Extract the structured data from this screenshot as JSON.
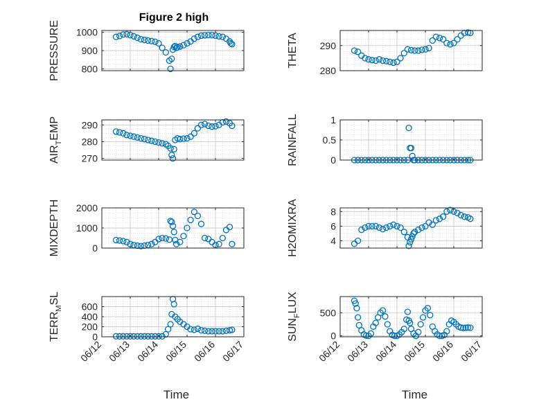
{
  "figure": {
    "title": "Figure 2 high"
  },
  "colors": {
    "marker": "#0072BD",
    "axis": "#262626",
    "grid": "#d0d0d0",
    "background": "#ffffff"
  },
  "chart_data": [
    {
      "type": "scatter",
      "ylabel": "PRESSURE",
      "xlabel": "",
      "title": "Figure 2 high",
      "xlim": [
        "06/12 00:00",
        "06/17 00:00"
      ],
      "ylim": [
        790,
        1010
      ],
      "yticks": [
        800,
        900,
        1000
      ],
      "xticks": [
        "06/12",
        "06/13",
        "06/14",
        "06/15",
        "06/16",
        "06/17"
      ],
      "show_xticklabels": false,
      "grid": true,
      "series": [
        {
          "x": [
            "06/12 12:00",
            "06/12 15:00",
            "06/12 18:00",
            "06/12 21:00",
            "06/13 00:00",
            "06/13 03:00",
            "06/13 06:00",
            "06/13 09:00",
            "06/13 12:00",
            "06/13 15:00",
            "06/13 18:00",
            "06/13 21:00",
            "06/14 00:00",
            "06/14 03:00",
            "06/14 06:00",
            "06/14 09:00",
            "06/14 10:00",
            "06/14 11:00",
            "06/14 12:00",
            "06/14 13:00",
            "06/14 14:00",
            "06/14 15:00",
            "06/14 16:00",
            "06/14 18:00",
            "06/14 21:00",
            "06/15 00:00",
            "06/15 03:00",
            "06/15 06:00",
            "06/15 09:00",
            "06/15 12:00",
            "06/15 15:00",
            "06/15 18:00",
            "06/15 21:00",
            "06/16 00:00",
            "06/16 03:00",
            "06/16 06:00",
            "06/16 09:00",
            "06/16 12:00",
            "06/16 13:00",
            "06/16 14:00"
          ],
          "y": [
            975,
            980,
            988,
            990,
            985,
            978,
            970,
            962,
            958,
            955,
            952,
            948,
            940,
            915,
            890,
            845,
            800,
            855,
            905,
            920,
            925,
            915,
            918,
            922,
            930,
            940,
            950,
            965,
            975,
            982,
            984,
            985,
            985,
            982,
            978,
            975,
            965,
            950,
            940,
            935
          ]
        }
      ]
    },
    {
      "type": "scatter",
      "ylabel": "THETA",
      "xlabel": "",
      "xlim": [
        "06/12 00:00",
        "06/17 00:00"
      ],
      "ylim": [
        280,
        296
      ],
      "yticks": [
        280,
        290
      ],
      "xticks": [
        "06/12",
        "06/13",
        "06/14",
        "06/15",
        "06/16",
        "06/17"
      ],
      "show_xticklabels": false,
      "grid": true,
      "series": [
        {
          "x": [
            "06/12 12:00",
            "06/12 15:00",
            "06/12 18:00",
            "06/12 21:00",
            "06/13 00:00",
            "06/13 03:00",
            "06/13 06:00",
            "06/13 09:00",
            "06/13 12:00",
            "06/13 15:00",
            "06/13 18:00",
            "06/13 21:00",
            "06/14 00:00",
            "06/14 03:00",
            "06/14 06:00",
            "06/14 09:00",
            "06/14 12:00",
            "06/14 15:00",
            "06/14 18:00",
            "06/14 21:00",
            "06/15 00:00",
            "06/15 03:00",
            "06/15 06:00",
            "06/15 09:00",
            "06/15 12:00",
            "06/15 15:00",
            "06/15 18:00",
            "06/15 21:00",
            "06/16 00:00",
            "06/16 03:00",
            "06/16 06:00",
            "06/16 09:00",
            "06/16 12:00",
            "06/16 14:00"
          ],
          "y": [
            288,
            287.5,
            286,
            285,
            284.5,
            284.2,
            284,
            284.5,
            284,
            283.8,
            283.5,
            283.2,
            283.5,
            285,
            287,
            288.5,
            288.2,
            288,
            288,
            288.3,
            288.5,
            289,
            292,
            293.5,
            293,
            292.5,
            291,
            290.5,
            291,
            292.5,
            294,
            295,
            295.2,
            295
          ]
        }
      ]
    },
    {
      "type": "scatter",
      "ylabel": "AIR_TEMP",
      "ylabel_main": "AIR",
      "ylabel_sub": "T",
      "ylabel_rest": "EMP",
      "xlabel": "",
      "xlim": [
        "06/12 00:00",
        "06/17 00:00"
      ],
      "ylim": [
        269,
        293
      ],
      "yticks": [
        270,
        280,
        290
      ],
      "xticks": [
        "06/12",
        "06/13",
        "06/14",
        "06/15",
        "06/16",
        "06/17"
      ],
      "show_xticklabels": false,
      "grid": true,
      "series": [
        {
          "x": [
            "06/12 12:00",
            "06/12 15:00",
            "06/12 18:00",
            "06/12 21:00",
            "06/13 00:00",
            "06/13 03:00",
            "06/13 06:00",
            "06/13 09:00",
            "06/13 12:00",
            "06/13 15:00",
            "06/13 18:00",
            "06/13 21:00",
            "06/14 00:00",
            "06/14 03:00",
            "06/14 06:00",
            "06/14 08:00",
            "06/14 10:00",
            "06/14 11:00",
            "06/14 12:00",
            "06/14 13:00",
            "06/14 14:00",
            "06/14 16:00",
            "06/14 18:00",
            "06/14 21:00",
            "06/15 00:00",
            "06/15 03:00",
            "06/15 06:00",
            "06/15 09:00",
            "06/15 12:00",
            "06/15 15:00",
            "06/15 18:00",
            "06/15 21:00",
            "06/16 00:00",
            "06/16 03:00",
            "06/16 06:00",
            "06/16 09:00",
            "06/16 12:00",
            "06/16 14:00"
          ],
          "y": [
            286,
            285.5,
            285,
            284,
            283.5,
            283,
            282.5,
            282,
            281.5,
            281,
            280.5,
            280,
            279.5,
            279,
            278.5,
            277.5,
            276,
            272,
            270,
            275.5,
            281,
            282,
            281.5,
            281.8,
            282,
            283,
            285,
            288,
            290,
            290.5,
            289.5,
            289,
            289.2,
            290,
            291.5,
            292,
            291,
            289.5
          ]
        }
      ]
    },
    {
      "type": "scatter",
      "ylabel": "RAINFALL",
      "xlabel": "",
      "xlim": [
        "06/12 00:00",
        "06/17 00:00"
      ],
      "ylim": [
        0,
        1
      ],
      "yticks": [
        0,
        0.5,
        1
      ],
      "xticks": [
        "06/12",
        "06/13",
        "06/14",
        "06/15",
        "06/16",
        "06/17"
      ],
      "show_xticklabels": false,
      "grid": true,
      "series": [
        {
          "x": [
            "06/12 12:00",
            "06/12 15:00",
            "06/12 18:00",
            "06/12 21:00",
            "06/13 00:00",
            "06/13 03:00",
            "06/13 06:00",
            "06/13 09:00",
            "06/13 12:00",
            "06/13 15:00",
            "06/13 18:00",
            "06/13 21:00",
            "06/14 00:00",
            "06/14 03:00",
            "06/14 06:00",
            "06/14 09:00",
            "06/14 10:00",
            "06/14 11:00",
            "06/14 12:00",
            "06/14 13:00",
            "06/14 14:00",
            "06/14 15:00",
            "06/14 18:00",
            "06/14 21:00",
            "06/15 00:00",
            "06/15 03:00",
            "06/15 06:00",
            "06/15 09:00",
            "06/15 12:00",
            "06/15 15:00",
            "06/15 18:00",
            "06/15 21:00",
            "06/16 00:00",
            "06/16 03:00",
            "06/16 06:00",
            "06/16 09:00",
            "06/16 12:00",
            "06/16 14:00"
          ],
          "y": [
            0,
            0,
            0,
            0,
            0,
            0,
            0,
            0,
            0,
            0,
            0,
            0,
            0,
            0,
            0,
            0,
            0.8,
            0.3,
            0.3,
            0.1,
            0,
            0,
            0,
            0,
            0,
            0,
            0,
            0,
            0,
            0,
            0,
            0,
            0,
            0,
            0,
            0,
            0,
            0
          ]
        }
      ]
    },
    {
      "type": "scatter",
      "ylabel": "MIXDEPTH",
      "xlabel": "",
      "xlim": [
        "06/12 00:00",
        "06/17 00:00"
      ],
      "ylim": [
        0,
        2000
      ],
      "yticks": [
        0,
        1000,
        2000
      ],
      "xticks": [
        "06/12",
        "06/13",
        "06/14",
        "06/15",
        "06/16",
        "06/17"
      ],
      "show_xticklabels": false,
      "grid": true,
      "series": [
        {
          "x": [
            "06/12 12:00",
            "06/12 15:00",
            "06/12 18:00",
            "06/12 21:00",
            "06/13 00:00",
            "06/13 03:00",
            "06/13 06:00",
            "06/13 09:00",
            "06/13 12:00",
            "06/13 15:00",
            "06/13 18:00",
            "06/13 21:00",
            "06/14 00:00",
            "06/14 03:00",
            "06/14 06:00",
            "06/14 09:00",
            "06/14 10:00",
            "06/14 11:00",
            "06/14 12:00",
            "06/14 13:00",
            "06/14 14:00",
            "06/14 15:00",
            "06/14 18:00",
            "06/14 21:00",
            "06/15 00:00",
            "06/15 03:00",
            "06/15 06:00",
            "06/15 09:00",
            "06/15 12:00",
            "06/15 15:00",
            "06/15 18:00",
            "06/15 21:00",
            "06/16 00:00",
            "06/16 03:00",
            "06/16 06:00",
            "06/16 09:00",
            "06/16 12:00",
            "06/16 14:00"
          ],
          "y": [
            400,
            380,
            350,
            300,
            200,
            150,
            120,
            100,
            120,
            150,
            200,
            300,
            450,
            500,
            480,
            420,
            1350,
            1300,
            1100,
            800,
            400,
            200,
            300,
            600,
            1000,
            1400,
            1800,
            1600,
            1200,
            500,
            450,
            300,
            150,
            200,
            500,
            900,
            1050,
            200
          ]
        }
      ]
    },
    {
      "type": "scatter",
      "ylabel": "H2OMIXRA",
      "xlabel": "",
      "xlim": [
        "06/12 00:00",
        "06/17 00:00"
      ],
      "ylim": [
        3,
        8.5
      ],
      "yticks": [
        4,
        6,
        8
      ],
      "xticks": [
        "06/12",
        "06/13",
        "06/14",
        "06/15",
        "06/16",
        "06/17"
      ],
      "show_xticklabels": false,
      "grid": true,
      "series": [
        {
          "x": [
            "06/12 12:00",
            "06/12 15:00",
            "06/12 18:00",
            "06/12 21:00",
            "06/13 00:00",
            "06/13 03:00",
            "06/13 06:00",
            "06/13 09:00",
            "06/13 12:00",
            "06/13 15:00",
            "06/13 18:00",
            "06/13 21:00",
            "06/14 00:00",
            "06/14 03:00",
            "06/14 06:00",
            "06/14 09:00",
            "06/14 10:00",
            "06/14 11:00",
            "06/14 12:00",
            "06/14 13:00",
            "06/14 14:00",
            "06/14 15:00",
            "06/14 18:00",
            "06/14 21:00",
            "06/15 00:00",
            "06/15 03:00",
            "06/15 06:00",
            "06/15 09:00",
            "06/15 12:00",
            "06/15 15:00",
            "06/15 18:00",
            "06/15 21:00",
            "06/16 00:00",
            "06/16 03:00",
            "06/16 06:00",
            "06/16 09:00",
            "06/16 12:00",
            "06/16 14:00"
          ],
          "y": [
            3.6,
            4,
            5.5,
            5.8,
            6,
            6,
            6,
            5.8,
            5.6,
            5.8,
            6,
            6.2,
            6,
            5.8,
            5.2,
            4.5,
            3.3,
            3.8,
            4.2,
            4.6,
            5,
            5.2,
            5.5,
            5.8,
            6,
            6.5,
            6.2,
            6.8,
            7,
            7.3,
            8,
            8.2,
            8,
            7.8,
            7.5,
            7.3,
            7.2,
            7
          ]
        }
      ]
    },
    {
      "type": "scatter",
      "ylabel": "TERR_MSL",
      "ylabel_main": "TERR",
      "ylabel_sub": "M",
      "ylabel_rest": "SL",
      "xlabel": "Time",
      "xlim": [
        "06/12 00:00",
        "06/17 00:00"
      ],
      "ylim": [
        0,
        800
      ],
      "yticks": [
        0,
        200,
        400,
        600
      ],
      "xticks": [
        "06/12",
        "06/13",
        "06/14",
        "06/15",
        "06/16",
        "06/17"
      ],
      "show_xticklabels": true,
      "grid": true,
      "series": [
        {
          "x": [
            "06/12 12:00",
            "06/12 15:00",
            "06/12 18:00",
            "06/12 21:00",
            "06/13 00:00",
            "06/13 03:00",
            "06/13 06:00",
            "06/13 09:00",
            "06/13 12:00",
            "06/13 15:00",
            "06/13 18:00",
            "06/13 21:00",
            "06/14 00:00",
            "06/14 03:00",
            "06/14 06:00",
            "06/14 08:00",
            "06/14 10:00",
            "06/14 11:00",
            "06/14 12:00",
            "06/14 13:00",
            "06/14 14:00",
            "06/14 16:00",
            "06/14 18:00",
            "06/14 21:00",
            "06/15 00:00",
            "06/15 03:00",
            "06/15 06:00",
            "06/15 09:00",
            "06/15 12:00",
            "06/15 15:00",
            "06/15 18:00",
            "06/15 21:00",
            "06/16 00:00",
            "06/16 03:00",
            "06/16 06:00",
            "06/16 09:00",
            "06/16 12:00",
            "06/16 14:00"
          ],
          "y": [
            10,
            10,
            10,
            10,
            10,
            10,
            10,
            10,
            10,
            10,
            10,
            10,
            10,
            10,
            50,
            150,
            250,
            450,
            750,
            650,
            400,
            350,
            300,
            250,
            200,
            150,
            140,
            160,
            130,
            120,
            110,
            110,
            110,
            110,
            110,
            120,
            130,
            140
          ]
        }
      ]
    },
    {
      "type": "scatter",
      "ylabel": "SUN_FLUX",
      "ylabel_main": "SUN",
      "ylabel_sub": "F",
      "ylabel_rest": "LUX",
      "xlabel": "Time",
      "xlim": [
        "06/12 00:00",
        "06/17 00:00"
      ],
      "ylim": [
        -20,
        850
      ],
      "yticks": [
        0,
        500
      ],
      "xticks": [
        "06/12",
        "06/13",
        "06/14",
        "06/15",
        "06/16",
        "06/17"
      ],
      "show_xticklabels": true,
      "grid": true,
      "series": [
        {
          "x": [
            "06/12 12:00",
            "06/12 13:00",
            "06/12 14:00",
            "06/12 15:00",
            "06/12 16:00",
            "06/12 18:00",
            "06/12 20:00",
            "06/12 22:00",
            "06/13 00:00",
            "06/13 02:00",
            "06/13 04:00",
            "06/13 06:00",
            "06/13 08:00",
            "06/13 10:00",
            "06/13 12:00",
            "06/13 14:00",
            "06/13 16:00",
            "06/13 18:00",
            "06/13 20:00",
            "06/13 22:00",
            "06/14 00:00",
            "06/14 02:00",
            "06/14 04:00",
            "06/14 06:00",
            "06/14 08:00",
            "06/14 09:00",
            "06/14 10:00",
            "06/14 11:00",
            "06/14 12:00",
            "06/14 14:00",
            "06/14 16:00",
            "06/14 18:00",
            "06/14 20:00",
            "06/14 22:00",
            "06/15 00:00",
            "06/15 02:00",
            "06/15 04:00",
            "06/15 06:00",
            "06/15 08:00",
            "06/15 10:00",
            "06/15 12:00",
            "06/15 14:00",
            "06/15 16:00",
            "06/15 18:00",
            "06/15 20:00",
            "06/15 22:00",
            "06/16 00:00",
            "06/16 02:00",
            "06/16 04:00",
            "06/16 06:00",
            "06/16 08:00",
            "06/16 10:00",
            "06/16 12:00",
            "06/16 14:00"
          ],
          "y": [
            760,
            700,
            600,
            400,
            230,
            120,
            30,
            5,
            0,
            50,
            200,
            280,
            400,
            500,
            550,
            420,
            250,
            100,
            20,
            0,
            0,
            30,
            80,
            150,
            350,
            520,
            330,
            280,
            150,
            50,
            0,
            80,
            250,
            400,
            550,
            600,
            450,
            200,
            100,
            30,
            0,
            0,
            20,
            100,
            250,
            330,
            300,
            250,
            200,
            180,
            170,
            175,
            180,
            175
          ]
        }
      ]
    }
  ]
}
